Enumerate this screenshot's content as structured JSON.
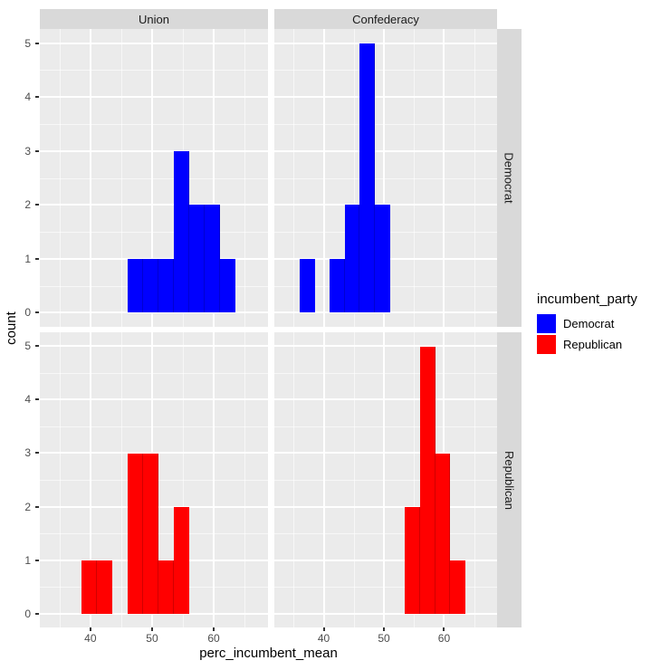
{
  "axes": {
    "x": {
      "title": "perc_incumbent_mean"
    },
    "y": {
      "title": "count"
    }
  },
  "facets": {
    "col_labels": [
      "Union",
      "Confederacy"
    ],
    "row_labels": [
      "Democrat",
      "Republican"
    ]
  },
  "legend": {
    "title": "incumbent_party",
    "entries": [
      {
        "label": "Democrat",
        "color": "#0000ff"
      },
      {
        "label": "Republican",
        "color": "#ff0000"
      }
    ]
  },
  "colors": {
    "panel_background": "#ebebeb",
    "strip_background": "#d9d9d9",
    "gridline": "#ffffff",
    "tick_label": "#4d4d4d",
    "axis_title": "#000000",
    "democrat_fill": "#0000ff",
    "republican_fill": "#ff0000"
  },
  "chart_data": {
    "type": "bar",
    "subtype": "faceted-histogram",
    "binwidth": 2.5,
    "x_domain": [
      31.8,
      68.8
    ],
    "y_domain": [
      -0.2625,
      5.2625
    ],
    "x_ticks": [
      40,
      50,
      60
    ],
    "x_minor": [
      35,
      45,
      55,
      65
    ],
    "y_ticks": [
      0,
      1,
      2,
      3,
      4,
      5
    ],
    "y_minor": [
      0.5,
      1.5,
      2.5,
      3.5,
      4.5
    ],
    "xlabel": "perc_incumbent_mean",
    "ylabel": "count",
    "legend_position": "right",
    "grid": true,
    "facets": [
      {
        "panel": "union-democrat",
        "col": "Union",
        "row": "Democrat",
        "fill": "#0000ff",
        "bars": [
          {
            "x0": 46.0,
            "x1": 48.5,
            "count": 1
          },
          {
            "x0": 48.5,
            "x1": 51.0,
            "count": 1
          },
          {
            "x0": 51.0,
            "x1": 53.5,
            "count": 1
          },
          {
            "x0": 53.5,
            "x1": 56.0,
            "count": 3
          },
          {
            "x0": 56.0,
            "x1": 58.5,
            "count": 2
          },
          {
            "x0": 58.5,
            "x1": 61.0,
            "count": 2
          },
          {
            "x0": 61.0,
            "x1": 63.5,
            "count": 1
          }
        ]
      },
      {
        "panel": "confederacy-democrat",
        "col": "Confederacy",
        "row": "Democrat",
        "fill": "#0000ff",
        "bars": [
          {
            "x0": 36.0,
            "x1": 38.5,
            "count": 1
          },
          {
            "x0": 41.0,
            "x1": 43.5,
            "count": 1
          },
          {
            "x0": 43.5,
            "x1": 46.0,
            "count": 2
          },
          {
            "x0": 46.0,
            "x1": 48.5,
            "count": 5
          },
          {
            "x0": 48.5,
            "x1": 51.0,
            "count": 2
          }
        ]
      },
      {
        "panel": "union-republican",
        "col": "Union",
        "row": "Republican",
        "fill": "#ff0000",
        "bars": [
          {
            "x0": 38.5,
            "x1": 41.0,
            "count": 1
          },
          {
            "x0": 41.0,
            "x1": 43.5,
            "count": 1
          },
          {
            "x0": 46.0,
            "x1": 48.5,
            "count": 3
          },
          {
            "x0": 48.5,
            "x1": 51.0,
            "count": 3
          },
          {
            "x0": 51.0,
            "x1": 53.5,
            "count": 1
          },
          {
            "x0": 53.5,
            "x1": 56.0,
            "count": 2
          }
        ]
      },
      {
        "panel": "confederacy-republican",
        "col": "Confederacy",
        "row": "Republican",
        "fill": "#ff0000",
        "bars": [
          {
            "x0": 53.5,
            "x1": 56.0,
            "count": 2
          },
          {
            "x0": 56.0,
            "x1": 58.5,
            "count": 5
          },
          {
            "x0": 58.5,
            "x1": 61.0,
            "count": 3
          },
          {
            "x0": 61.0,
            "x1": 63.5,
            "count": 1
          }
        ]
      }
    ]
  }
}
